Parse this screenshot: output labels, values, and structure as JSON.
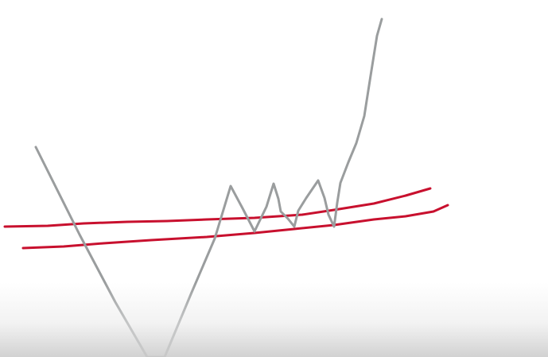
{
  "diagram": {
    "background_color": "#ffffff",
    "price_line_color": "#9a9d9e",
    "band_line_color": "#c8102e",
    "elements": [
      "price-path",
      "upper-red-band-line",
      "lower-red-band-line"
    ]
  }
}
